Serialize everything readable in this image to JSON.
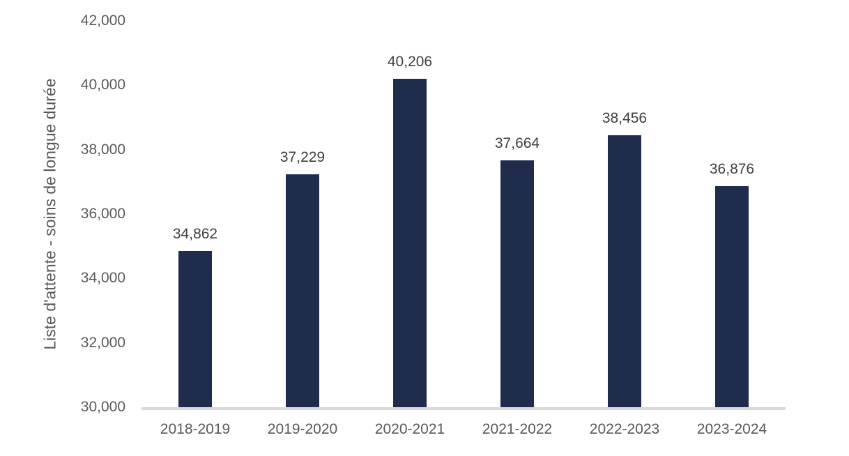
{
  "chart_data": {
    "type": "bar",
    "title": "",
    "xlabel": "",
    "ylabel": "Liste d'attente - soins de longue durée",
    "categories": [
      "2018-2019",
      "2019-2020",
      "2020-2021",
      "2021-2022",
      "2022-2023",
      "2023-2024"
    ],
    "values": [
      34862,
      37229,
      40206,
      37664,
      38456,
      36876
    ],
    "value_labels": [
      "34,862",
      "37,229",
      "40,206",
      "37,664",
      "38,456",
      "36,876"
    ],
    "ylim": [
      30000,
      42000
    ],
    "ytick_step": 2000,
    "ytick_labels": [
      "30,000",
      "32,000",
      "34,000",
      "36,000",
      "38,000",
      "40,000",
      "42,000"
    ],
    "grid": false,
    "legend_position": "none",
    "colors": {
      "bar": "#1f2c4c",
      "axis_line": "#d9d9d9",
      "tick_label": "#595959",
      "data_label": "#3f3f3f",
      "background": "#ffffff"
    }
  }
}
